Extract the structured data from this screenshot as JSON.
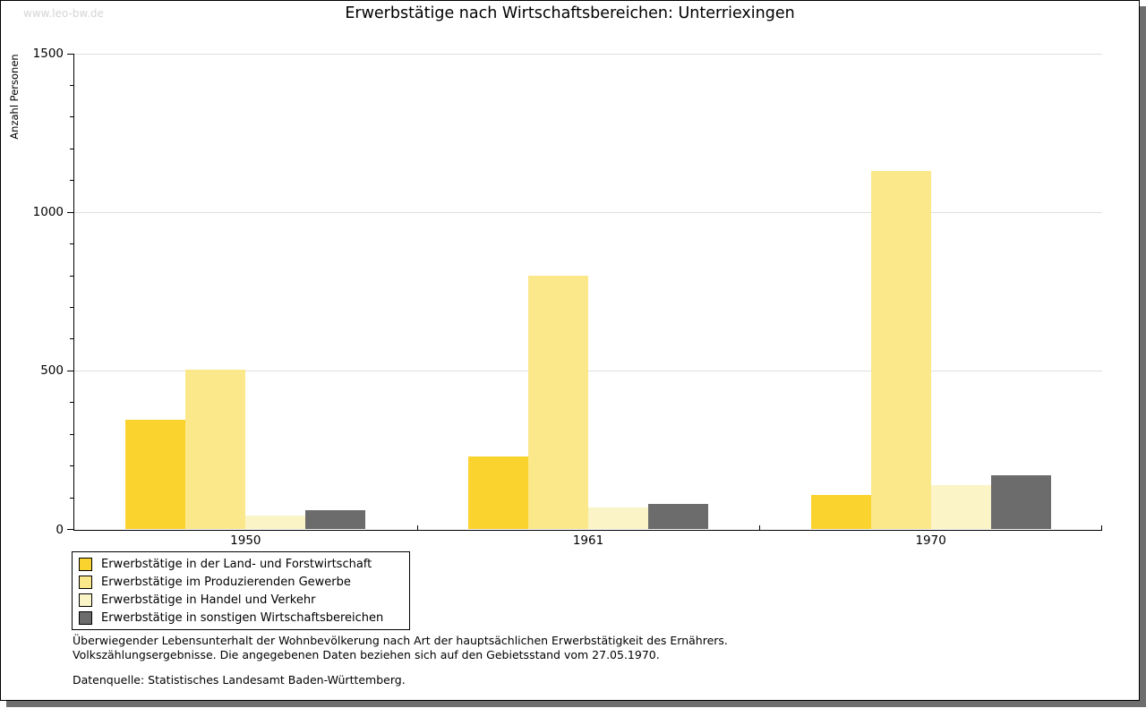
{
  "page": {
    "watermark": "www.leo-bw.de",
    "background_color": "#FFFFFF",
    "frame_color": "#000000",
    "shadow_color": "#6E6E6E"
  },
  "chart_data": {
    "type": "bar",
    "title": "Erwerbstätige nach Wirtschaftsbereichen: Unterriexingen",
    "ylabel": "Anzahl Personen",
    "xlabel": "",
    "categories": [
      "1950",
      "1961",
      "1970"
    ],
    "series": [
      {
        "name": "Erwerbstätige in der Land- und Forstwirtschaft",
        "color": "#FBD32F",
        "values": [
          345,
          230,
          110
        ]
      },
      {
        "name": "Erwerbstätige im Produzierenden Gewerbe",
        "color": "#FBE88A",
        "values": [
          505,
          800,
          1130
        ]
      },
      {
        "name": "Erwerbstätige in Handel und Verkehr",
        "color": "#FBF4C7",
        "values": [
          45,
          70,
          140
        ]
      },
      {
        "name": "Erwerbstätige in sonstigen Wirtschaftsbereichen",
        "color": "#6C6C6C",
        "values": [
          60,
          80,
          170
        ]
      }
    ],
    "ylim": [
      0,
      1500
    ],
    "yticks": [
      0,
      500,
      1000,
      1500
    ],
    "minor_tick_step": 100,
    "grid": true,
    "gridline_color": "#DEDEDE",
    "legend_position": "bottom-left"
  },
  "footnotes": {
    "line1": "Überwiegender Lebensunterhalt der Wohnbevölkerung nach Art der hauptsächlichen Erwerbstätigkeit des Ernährers.",
    "line2": "Volkszählungsergebnisse. Die angegebenen Daten beziehen sich auf den Gebietsstand vom 27.05.1970.",
    "source": "Datenquelle: Statistisches Landesamt Baden-Württemberg."
  }
}
